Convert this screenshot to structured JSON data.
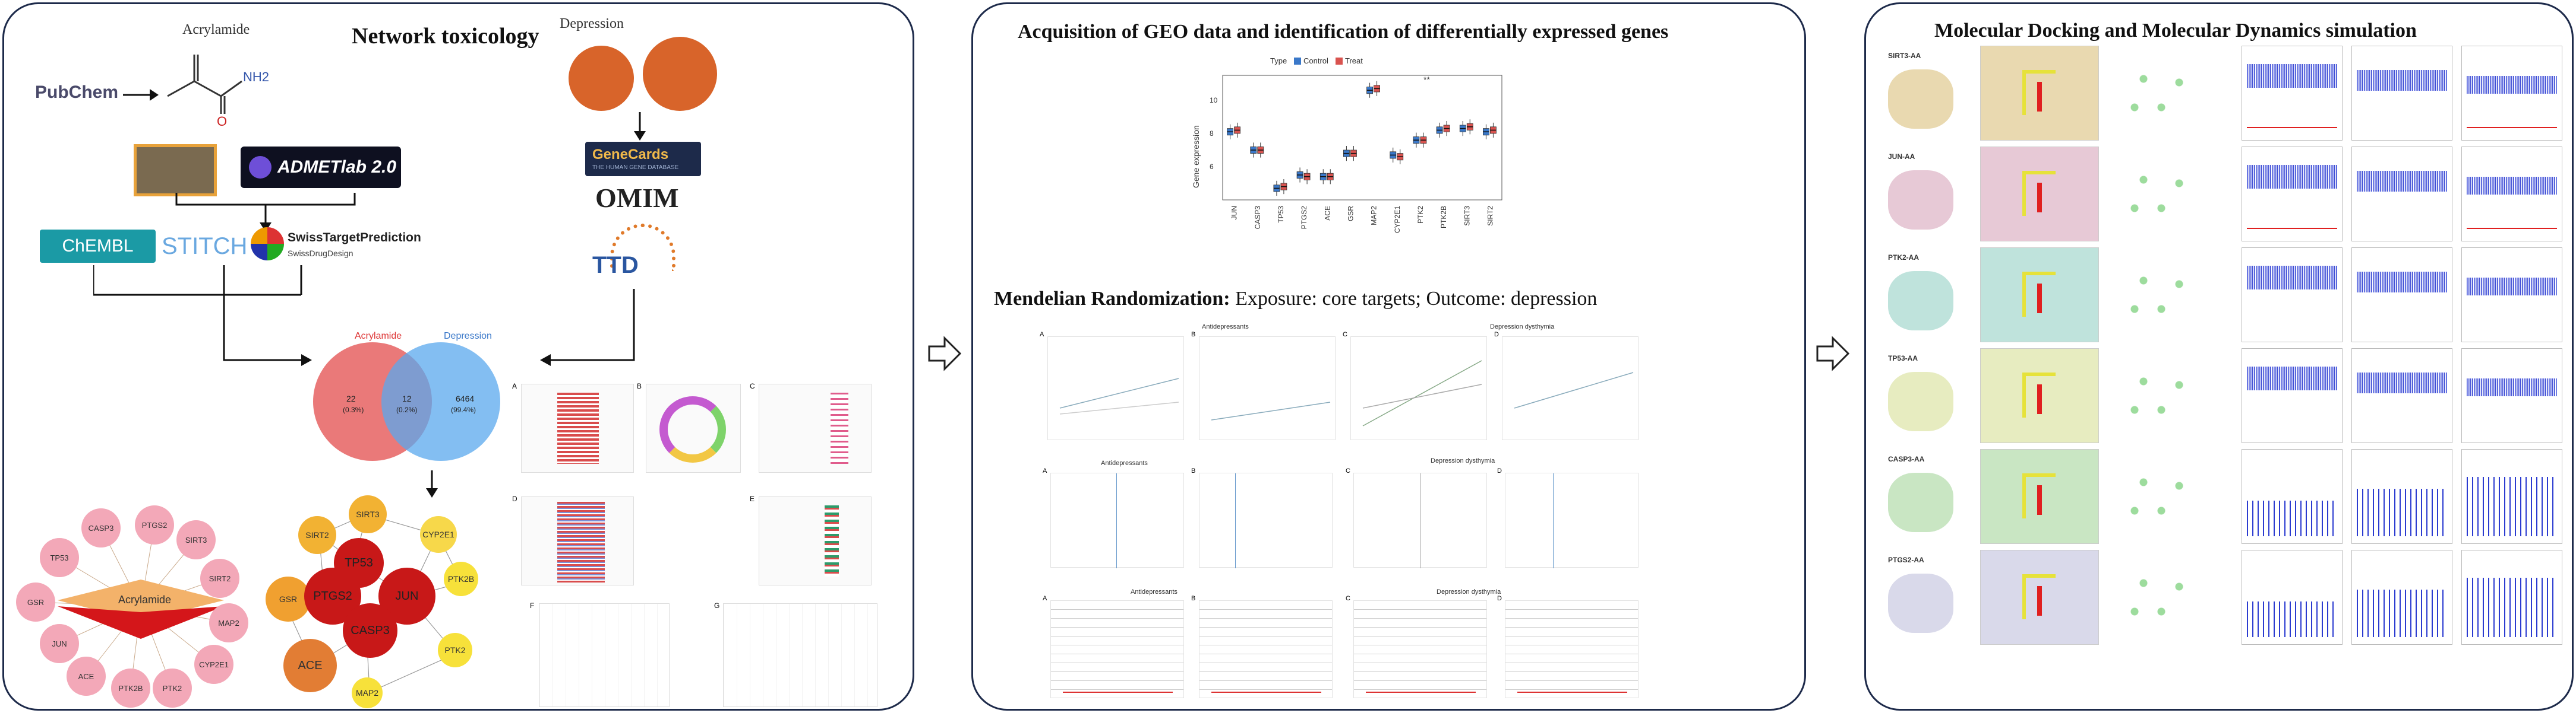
{
  "panel1": {
    "title": "Network toxicology",
    "acrylamide_label": "Acrylamide",
    "pubchem": "PubChem",
    "nh2": "NH2",
    "o_atom": "O",
    "admetlab": "ADMETlab 2.0",
    "chembl": "ChEMBL",
    "stitch": "STITCH",
    "swiss_title": "SwissTargetPrediction",
    "swiss_sub": "SwissDrugDesign",
    "depression_label": "Depression",
    "genecards": "GeneCards",
    "genecards_sub": "THE HUMAN GENE DATABASE",
    "omim": "OMIM",
    "ttd": "TTD",
    "venn": {
      "left_label": "Acrylamide",
      "right_label": "Depression",
      "left_count": "22",
      "left_pct": "(0.3%)",
      "mid_count": "12",
      "mid_pct": "(0.2%)",
      "right_count": "6464",
      "right_pct": "(99.4%)"
    },
    "network_center": "Acrylamide",
    "network_genes": [
      "PTGS2",
      "SIRT3",
      "SIRT2",
      "MAP2",
      "CYP2E1",
      "PTK2",
      "PTK2B",
      "ACE",
      "JUN",
      "GSR",
      "TP53",
      "CASP3"
    ],
    "ppi_nodes": [
      "SIRT3",
      "SIRT2",
      "CYP2E1",
      "TP53",
      "GSR",
      "PTGS2",
      "JUN",
      "CASP3",
      "PTK2B",
      "ACE",
      "PTK2",
      "MAP2"
    ],
    "enrich_letters": [
      "A",
      "B",
      "C",
      "D",
      "E",
      "F",
      "G"
    ]
  },
  "panel2": {
    "title": "Acquisition of GEO data and identification of differentially expressed genes",
    "legend_title": "Type",
    "legend_control": "Control",
    "legend_treat": "Treat",
    "ylabel": "Gene expression",
    "sig_marks": "**",
    "mr_title_bold": "Mendelian Randomization:",
    "mr_title_rest": "Exposure: core targets; Outcome: depression",
    "row_labels": [
      "Antidepressants",
      "Depression dysthymia"
    ],
    "panel_letters": [
      "A",
      "B",
      "C",
      "D"
    ]
  },
  "panel3": {
    "title": "Molecular Docking and Molecular Dynamics simulation",
    "rows": [
      "SIRT3-AA",
      "JUN-AA",
      "PTK2-AA",
      "TP53-AA",
      "CASP3-AA",
      "PTGS2-AA"
    ]
  },
  "chart_data": {
    "type": "box",
    "title": "",
    "ylabel": "Gene expression",
    "categories": [
      "JUN",
      "CASP3",
      "TP53",
      "PTGS2",
      "ACE",
      "GSR",
      "MAP2",
      "CYP2E1",
      "PTK2",
      "PTK2B",
      "SIRT3",
      "SIRT2"
    ],
    "series": [
      {
        "name": "Control",
        "color": "#3a78c9",
        "medians": [
          8.1,
          7.0,
          4.7,
          5.5,
          5.4,
          6.8,
          10.6,
          6.7,
          7.6,
          8.2,
          8.3,
          8.1
        ]
      },
      {
        "name": "Treat",
        "color": "#d9534f",
        "medians": [
          8.2,
          7.0,
          4.8,
          5.4,
          5.4,
          6.8,
          10.7,
          6.6,
          7.6,
          8.3,
          8.4,
          8.2
        ]
      }
    ],
    "yticks": [
      6,
      8,
      10
    ],
    "ylim": [
      4,
      11.5
    ]
  }
}
